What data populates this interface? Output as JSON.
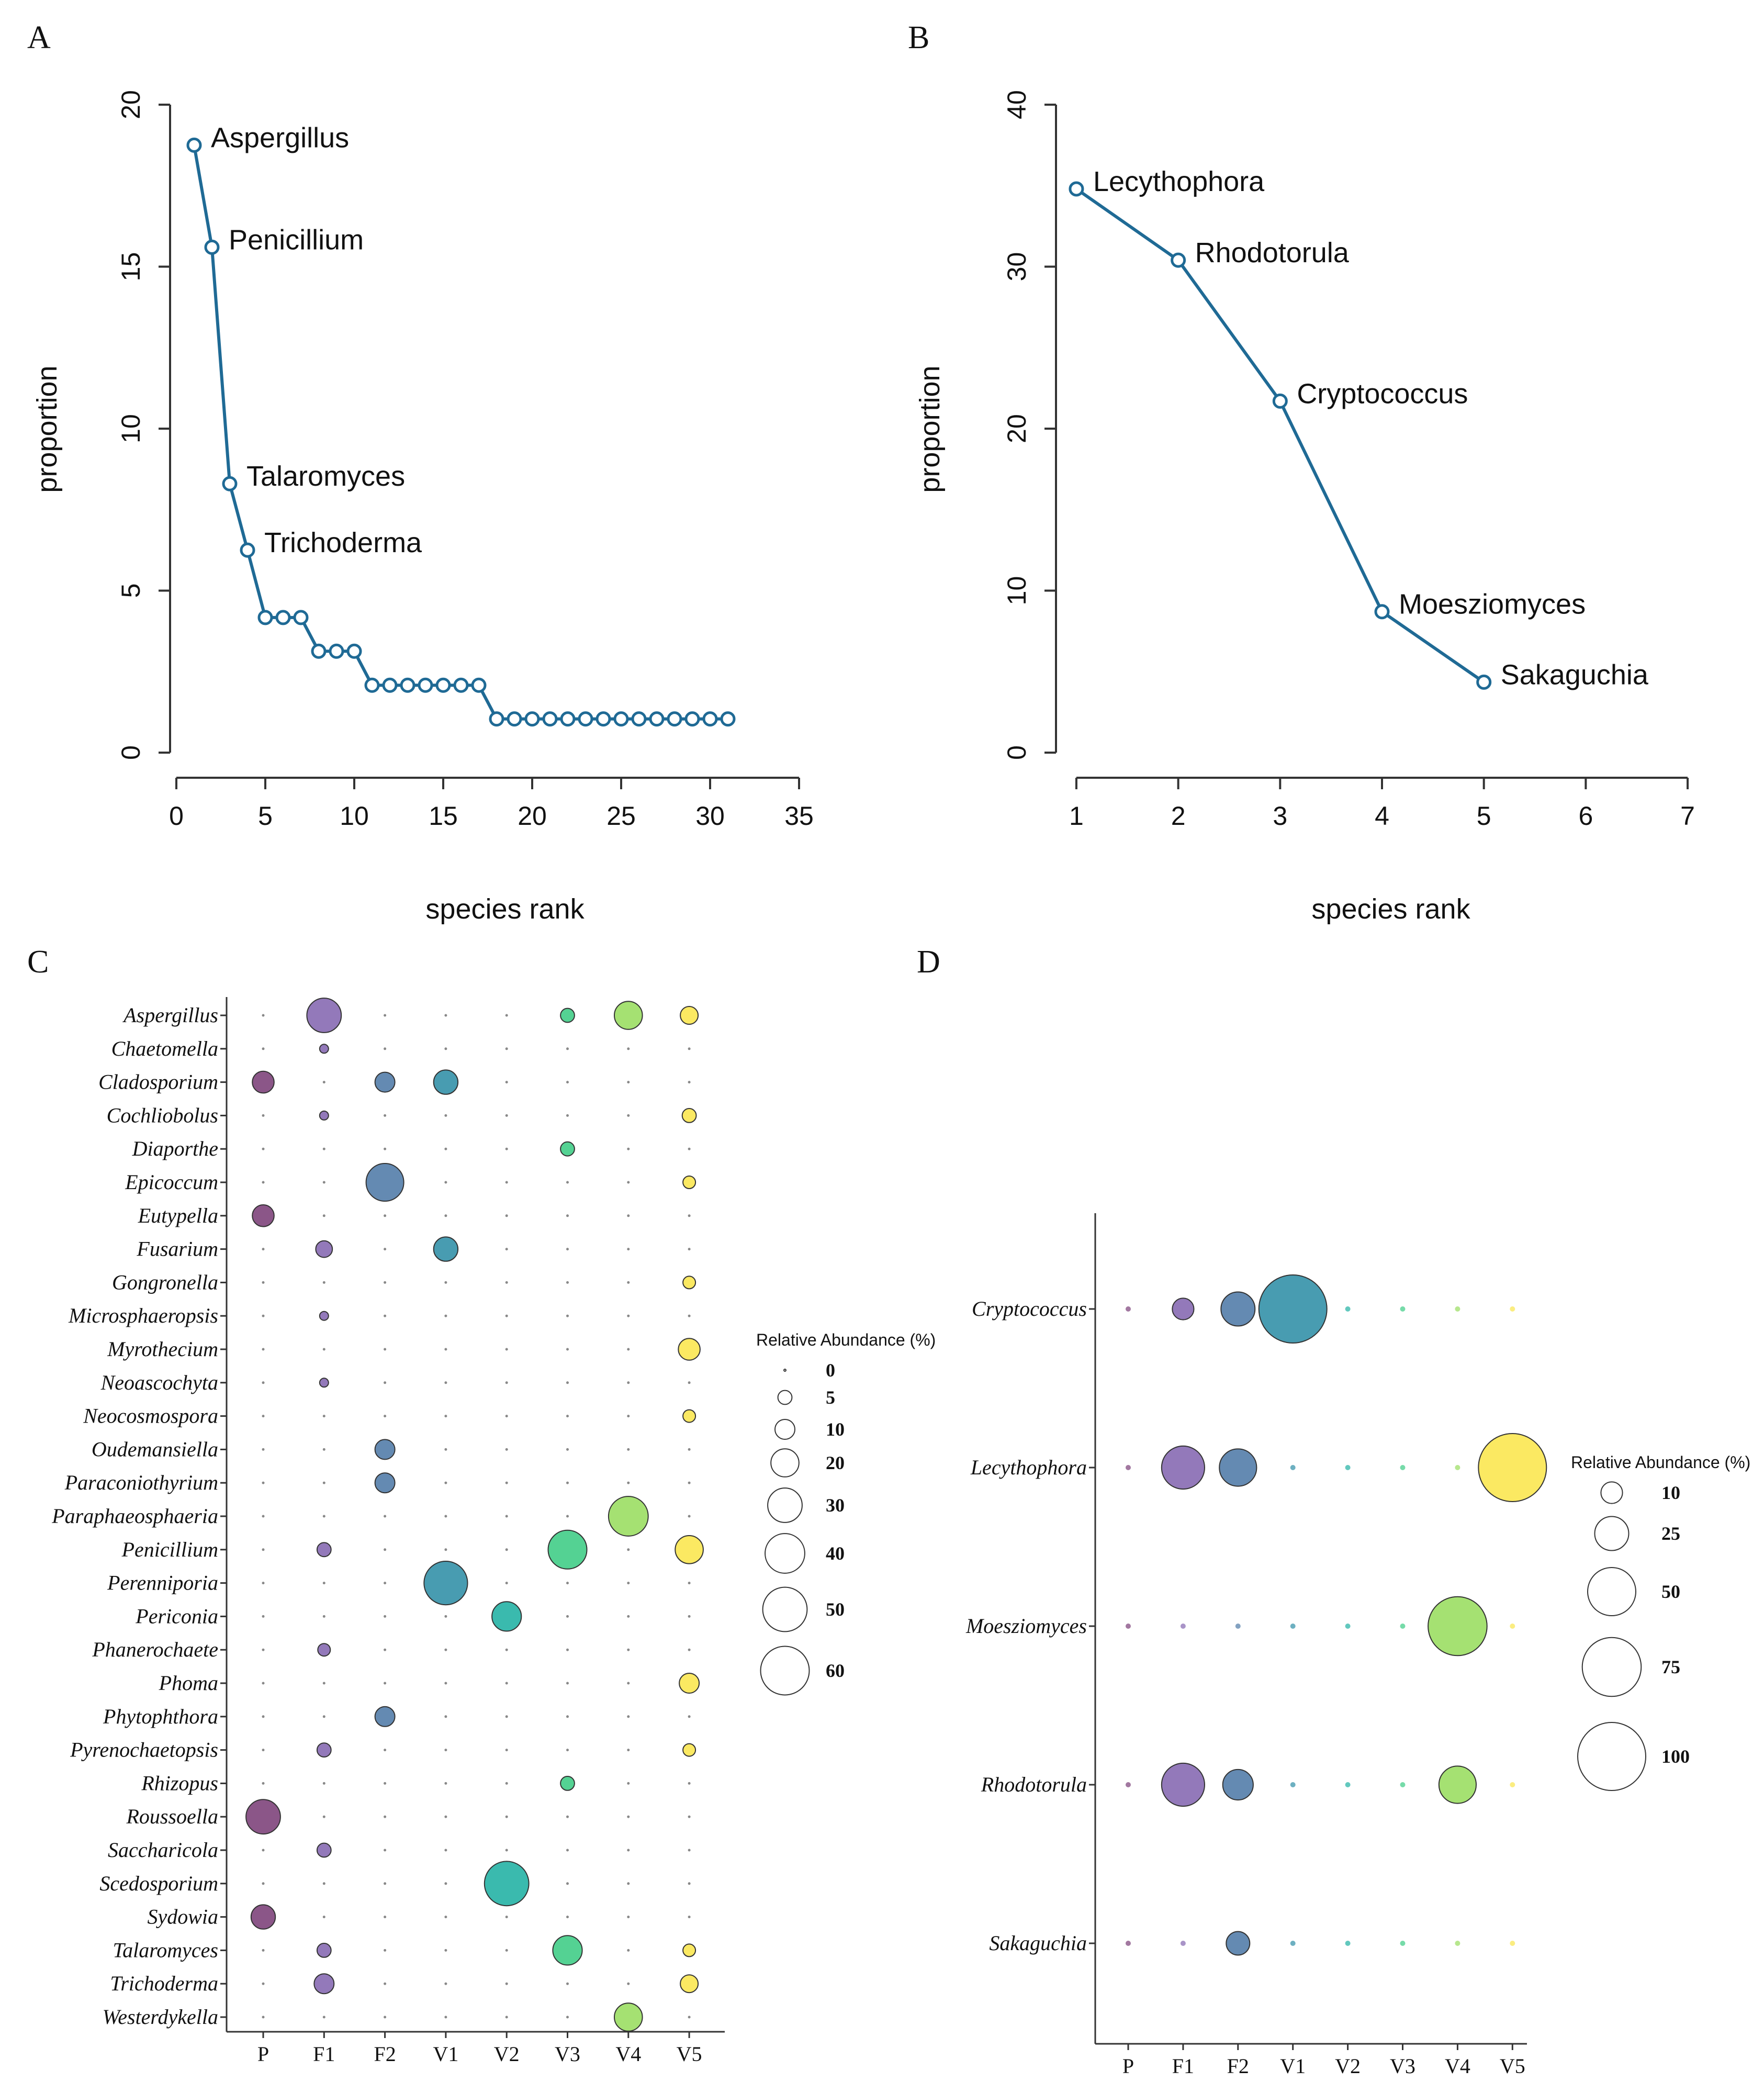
{
  "panels": {
    "A": "A",
    "B": "B",
    "C": "C",
    "D": "D"
  },
  "colors": {
    "line": "#1f6a95",
    "P": "#7b3f78",
    "F1": "#8466b0",
    "F2": "#4f7aa7",
    "V1": "#2f8ea6",
    "V2": "#1fb0a3",
    "V3": "#3ccc84",
    "V4": "#99dd5e",
    "V5": "#fae64c"
  },
  "chart_data": [
    {
      "id": "A",
      "type": "line",
      "xlabel": "species rank",
      "ylabel": "proportion",
      "xlim": [
        0,
        36
      ],
      "ylim": [
        0,
        20
      ],
      "xticks": [
        0,
        5,
        10,
        15,
        20,
        25,
        30,
        35
      ],
      "yticks": [
        0,
        5,
        10,
        15,
        20
      ],
      "x": [
        1,
        2,
        3,
        4,
        5,
        6,
        7,
        8,
        9,
        10,
        11,
        12,
        13,
        14,
        15,
        16,
        17,
        18,
        19,
        20,
        21,
        22,
        23,
        24,
        25,
        26,
        27,
        28,
        29,
        30,
        31
      ],
      "y": [
        18.75,
        15.6,
        8.3,
        6.25,
        4.17,
        4.17,
        4.17,
        3.13,
        3.13,
        3.13,
        2.08,
        2.08,
        2.08,
        2.08,
        2.08,
        2.08,
        2.08,
        1.04,
        1.04,
        1.04,
        1.04,
        1.04,
        1.04,
        1.04,
        1.04,
        1.04,
        1.04,
        1.04,
        1.04,
        1.04,
        1.04
      ],
      "labels": [
        {
          "rank": 1,
          "text": "Aspergillus"
        },
        {
          "rank": 2,
          "text": "Penicillium"
        },
        {
          "rank": 3,
          "text": "Talaromyces"
        },
        {
          "rank": 4,
          "text": "Trichoderma"
        }
      ]
    },
    {
      "id": "B",
      "type": "line",
      "xlabel": "species rank",
      "ylabel": "proportion",
      "xlim": [
        0.8,
        7.2
      ],
      "ylim": [
        0,
        40
      ],
      "xticks": [
        1,
        2,
        3,
        4,
        5,
        6,
        7
      ],
      "yticks": [
        0,
        10,
        20,
        30,
        40
      ],
      "x": [
        1,
        2,
        3,
        4,
        5
      ],
      "y": [
        34.8,
        30.4,
        21.7,
        8.7,
        4.35
      ],
      "labels": [
        {
          "rank": 1,
          "text": "Lecythophora"
        },
        {
          "rank": 2,
          "text": "Rhodotorula"
        },
        {
          "rank": 3,
          "text": "Cryptococcus"
        },
        {
          "rank": 4,
          "text": "Moesziomyces"
        },
        {
          "rank": 5,
          "text": "Sakaguchia"
        }
      ]
    },
    {
      "id": "C",
      "type": "scatter",
      "samples": [
        "P",
        "F1",
        "F2",
        "V1",
        "V2",
        "V3",
        "V4",
        "V5"
      ],
      "genera": [
        "Aspergillus",
        "Chaetomella",
        "Cladosporium",
        "Cochliobolus",
        "Diaporthe",
        "Epicoccum",
        "Eutypella",
        "Fusarium",
        "Gongronella",
        "Microsphaeropsis",
        "Myrothecium",
        "Neoascochyta",
        "Neocosmospora",
        "Oudemansiella",
        "Paraconiothyrium",
        "Paraphaeosphaeria",
        "Penicillium",
        "Perenniporia",
        "Periconia",
        "Phanerochaete",
        "Phoma",
        "Phytophthora",
        "Pyrenochaetopsis",
        "Rhizopus",
        "Roussoella",
        "Saccharicola",
        "Scedosporium",
        "Sydowia",
        "Talaromyces",
        "Trichoderma",
        "Westerdykella"
      ],
      "values": [
        [
          0,
          30,
          0,
          0,
          0,
          5,
          20,
          8
        ],
        [
          0,
          2,
          0,
          0,
          0,
          0,
          0,
          0
        ],
        [
          12,
          0,
          10,
          15,
          0,
          0,
          0,
          0
        ],
        [
          0,
          2,
          0,
          0,
          0,
          0,
          0,
          5
        ],
        [
          0,
          0,
          0,
          0,
          0,
          5,
          0,
          0
        ],
        [
          0,
          0,
          36,
          0,
          0,
          0,
          0,
          4
        ],
        [
          12,
          0,
          0,
          0,
          0,
          0,
          0,
          0
        ],
        [
          0,
          7,
          0,
          15,
          0,
          0,
          0,
          0
        ],
        [
          0,
          0,
          0,
          0,
          0,
          0,
          0,
          4
        ],
        [
          0,
          2,
          0,
          0,
          0,
          0,
          0,
          0
        ],
        [
          0,
          0,
          0,
          0,
          0,
          0,
          0,
          12
        ],
        [
          0,
          2,
          0,
          0,
          0,
          0,
          0,
          0
        ],
        [
          0,
          0,
          0,
          0,
          0,
          0,
          0,
          4
        ],
        [
          0,
          0,
          10,
          0,
          0,
          0,
          0,
          0
        ],
        [
          0,
          0,
          10,
          0,
          0,
          0,
          0,
          0
        ],
        [
          0,
          0,
          0,
          0,
          0,
          0,
          40,
          0
        ],
        [
          0,
          5,
          0,
          0,
          0,
          38,
          0,
          20
        ],
        [
          0,
          0,
          0,
          48,
          0,
          0,
          0,
          0
        ],
        [
          0,
          0,
          0,
          0,
          22,
          0,
          0,
          0
        ],
        [
          0,
          4,
          0,
          0,
          0,
          0,
          0,
          0
        ],
        [
          0,
          0,
          0,
          0,
          0,
          0,
          0,
          10
        ],
        [
          0,
          0,
          10,
          0,
          0,
          0,
          0,
          0
        ],
        [
          0,
          5,
          0,
          0,
          0,
          0,
          0,
          4
        ],
        [
          0,
          0,
          0,
          0,
          0,
          5,
          0,
          0
        ],
        [
          30,
          0,
          0,
          0,
          0,
          0,
          0,
          0
        ],
        [
          0,
          5,
          0,
          0,
          0,
          0,
          0,
          0
        ],
        [
          0,
          0,
          0,
          0,
          50,
          0,
          0,
          0
        ],
        [
          15,
          0,
          0,
          0,
          0,
          0,
          0,
          0
        ],
        [
          0,
          5,
          0,
          0,
          0,
          22,
          0,
          4
        ],
        [
          0,
          10,
          0,
          0,
          0,
          0,
          0,
          8
        ],
        [
          0,
          0,
          0,
          0,
          0,
          0,
          20,
          0
        ]
      ],
      "legend": {
        "title": "Relative Abundance (%)",
        "values": [
          0,
          5,
          10,
          20,
          30,
          40,
          50,
          60
        ]
      }
    },
    {
      "id": "D",
      "type": "scatter",
      "samples": [
        "P",
        "F1",
        "F2",
        "V1",
        "V2",
        "V3",
        "V4",
        "V5"
      ],
      "genera": [
        "Cryptococcus",
        "Lecythophora",
        "Moesziomyces",
        "Rhodotorula",
        "Sakaguchia"
      ],
      "values": [
        [
          0,
          10,
          25,
          100,
          0,
          0,
          0,
          0
        ],
        [
          0,
          40,
          30,
          0,
          0,
          0,
          0,
          100
        ],
        [
          0,
          0,
          0,
          0,
          0,
          0,
          75,
          0
        ],
        [
          0,
          40,
          20,
          0,
          0,
          0,
          30,
          0
        ],
        [
          0,
          0,
          12,
          0,
          0,
          0,
          0,
          0
        ]
      ],
      "legend": {
        "title": "Relative Abundance (%)",
        "values": [
          10,
          25,
          50,
          75,
          100
        ]
      }
    }
  ]
}
